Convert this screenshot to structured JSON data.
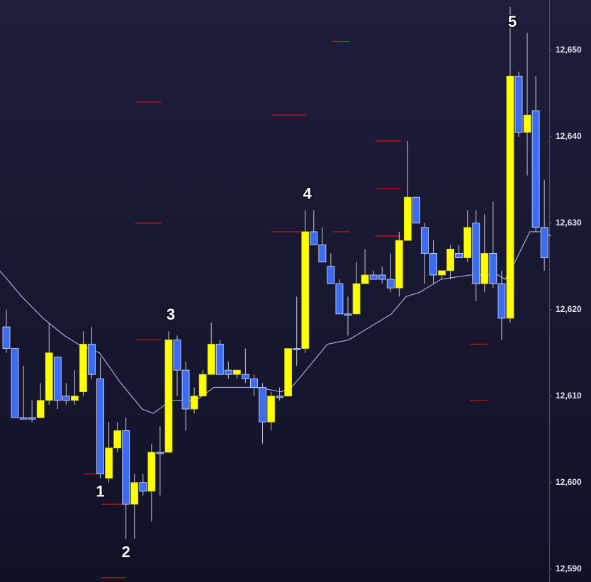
{
  "chart_data": {
    "type": "candlestick",
    "up_color": "#ffff00",
    "down_color": "#3a6cf4",
    "wick_color": "#c8c8d8",
    "open": [
      12618,
      12615.5,
      12607.5,
      12607.5,
      12607.5,
      12609.5,
      12614.5,
      12610,
      12609.5,
      12610.5,
      12616,
      12612,
      12600.5,
      12604,
      12606,
      12597.5,
      12600,
      12599,
      12603.5,
      12603.5,
      12616.5,
      12613,
      12608.5,
      12610,
      12612.5,
      12616,
      12613,
      12612.5,
      12612.5,
      12612,
      12611,
      12607,
      12610,
      12610,
      12615.5,
      12615.5,
      12629,
      12627.5,
      12625,
      12623,
      12619.5,
      12619.5,
      12623,
      12624,
      12624,
      12623.5,
      12622.5,
      12628,
      12633,
      12629.5,
      12626.5,
      12624,
      12624.5,
      12626.5,
      12626,
      12630,
      12623,
      12626.5,
      12623,
      12619,
      12647,
      12640.5,
      12643,
      12629.5
    ],
    "high": [
      12620,
      12615.5,
      12613.5,
      12609.5,
      12611.5,
      12618.5,
      12614.5,
      12611.5,
      12613,
      12617.5,
      12618,
      12614.5,
      12607,
      12607,
      12607.5,
      12601,
      12601,
      12604.5,
      12606.5,
      12617.5,
      12617,
      12614,
      12611,
      12613,
      12618.5,
      12616.5,
      12614,
      12613,
      12615.5,
      12612.5,
      12611.5,
      12610.5,
      12611,
      12615.5,
      12621.5,
      12631.5,
      12631.5,
      12629.5,
      12626.5,
      12623.5,
      12621.5,
      12625.5,
      12627,
      12624.5,
      12625,
      12626.5,
      12629,
      12639.5,
      12633,
      12630,
      12628,
      12624.5,
      12627.5,
      12627.5,
      12631.5,
      12631.5,
      12631,
      12632.5,
      12624.5,
      12655,
      12647.5,
      12652,
      12647,
      12635
    ],
    "low": [
      12615,
      12607.5,
      12607.5,
      12607,
      12607.5,
      12609,
      12608.5,
      12609,
      12609,
      12610,
      12612,
      12600.5,
      12600,
      12603.5,
      12593.5,
      12593.5,
      12598.5,
      12595.5,
      12598.5,
      12603.5,
      12610,
      12606,
      12608,
      12610,
      12612.5,
      12612.5,
      12612,
      12612,
      12611.5,
      12610,
      12604.5,
      12606,
      12609.5,
      12610,
      12613.5,
      12615,
      12627.5,
      12625.5,
      12623,
      12619.5,
      12617,
      12619.5,
      12623,
      12623.5,
      12623,
      12622,
      12621.5,
      12628,
      12630,
      12623,
      12623,
      12623.5,
      12623.5,
      12626,
      12625.5,
      12621,
      12622,
      12622.5,
      12616.5,
      12618.5,
      12640,
      12635.5,
      12629,
      12624.5
    ],
    "close": [
      12615.5,
      12607.5,
      12607.5,
      12607.5,
      12609.5,
      12615,
      12609.5,
      12609.5,
      12610,
      12616,
      12612.5,
      12601,
      12604,
      12606,
      12597.5,
      12600,
      12599,
      12603.5,
      12603.5,
      12616.5,
      12613,
      12608.5,
      12610,
      12612.5,
      12616,
      12612.5,
      12612.5,
      12613,
      12612,
      12611,
      12607,
      12610,
      12610,
      12615.5,
      12615.5,
      12629,
      12627.5,
      12625.5,
      12623,
      12619.5,
      12619.5,
      12623,
      12624,
      12623.5,
      12623.5,
      12622.5,
      12628,
      12633,
      12630,
      12626.5,
      12624,
      12624.5,
      12627,
      12626,
      12629.5,
      12623,
      12626.5,
      12623,
      12619,
      12647,
      12640.5,
      12642.5,
      12629.5,
      12626
    ],
    "moving_average": {
      "color": "#a9a9e4",
      "x": [
        -0.8,
        0.1,
        1.8,
        4.3,
        6.8,
        8.4,
        10.9,
        13.4,
        15.9,
        17.2,
        19.3,
        20.9,
        22.2,
        24.3,
        27.6,
        29.3,
        32.2,
        33.4,
        35.1,
        37.6,
        40.1,
        42.6,
        45.1,
        46.8,
        48.4,
        50.9,
        54.3,
        57.6,
        58.4,
        59.3,
        61.3,
        62.6,
        63.8
      ],
      "values": [
        12624.5,
        12623.5,
        12621.5,
        12619,
        12617,
        12616,
        12615,
        12611.5,
        12608.5,
        12608,
        12609.5,
        12609.5,
        12609.5,
        12611,
        12611,
        12611,
        12610.5,
        12611,
        12613,
        12616,
        12616.5,
        12618,
        12619.5,
        12621.5,
        12622,
        12623.5,
        12624,
        12624,
        12623.5,
        12625,
        12629,
        12629,
        12628.5
      ]
    },
    "levels": {
      "color": "#e01010",
      "values": [
        12601,
        12597.5,
        12589,
        12644,
        12630,
        12616.5,
        12642.5,
        12629,
        12651,
        12629,
        12639.5,
        12634,
        12628.5,
        12616,
        12609.5,
        12623
      ],
      "x_from": [
        9.1,
        11.1,
        11.1,
        15.1,
        15.1,
        15.1,
        31.1,
        31.1,
        38.2,
        38.2,
        43.2,
        43.2,
        43.2,
        54.3,
        54.3,
        54.3
      ],
      "x_to": [
        10.9,
        13.8,
        14,
        18.1,
        18.1,
        18.1,
        35.2,
        35.2,
        40.2,
        40.2,
        46.2,
        46.2,
        46.2,
        56.3,
        56.3,
        56.3
      ]
    },
    "annotations": [
      {
        "text": "1",
        "candle": 11,
        "placement": "below"
      },
      {
        "text": "2",
        "candle": 14,
        "placement": "below"
      },
      {
        "text": "3",
        "candle": 19,
        "placement": "above"
      },
      {
        "text": "4",
        "candle": 35,
        "placement": "above"
      },
      {
        "text": "5",
        "candle": 59,
        "placement": "above"
      }
    ],
    "ylim": [
      12588.5,
      12655.8
    ],
    "yticks": [
      {
        "value": 12590,
        "label": "12,590"
      },
      {
        "value": 12600,
        "label": "12,600"
      },
      {
        "value": 12610,
        "label": "12,610"
      },
      {
        "value": 12620,
        "label": "12,620"
      },
      {
        "value": 12630,
        "label": "12,630"
      },
      {
        "value": 12640,
        "label": "12,640"
      },
      {
        "value": 12650,
        "label": "12,650"
      }
    ]
  }
}
